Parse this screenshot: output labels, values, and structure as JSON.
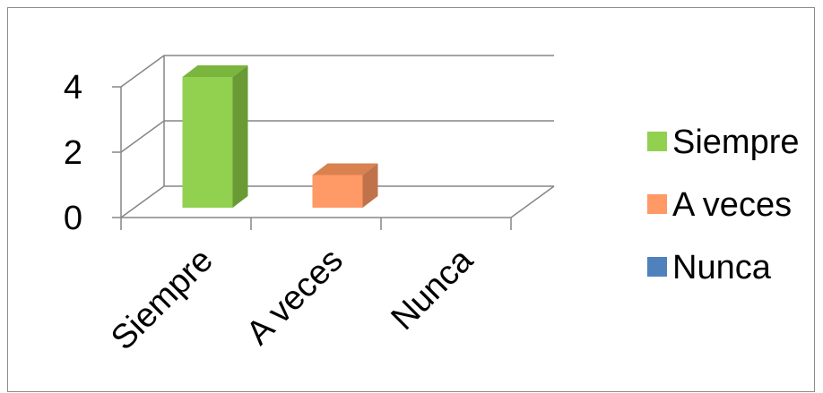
{
  "chart_data": {
    "type": "bar",
    "style": "3d-column",
    "categories": [
      "Siempre",
      "A veces",
      "Nunca"
    ],
    "values": [
      4,
      1,
      0
    ],
    "colors": [
      "#92d050",
      "#ff9966",
      "#4f81bd"
    ],
    "side_colors": [
      "#6a9a34",
      "#c0734a",
      "#365f8f"
    ],
    "top_colors": [
      "#7ab53e",
      "#d9814f",
      "#3f6fa6"
    ],
    "yticks": [
      0,
      2,
      4
    ],
    "ylim": [
      0,
      4
    ],
    "gridlines": true,
    "legend": {
      "position": "right",
      "entries": [
        "Siempre",
        "A veces",
        "Nunca"
      ]
    },
    "title": "",
    "xlabel": "",
    "ylabel": ""
  }
}
